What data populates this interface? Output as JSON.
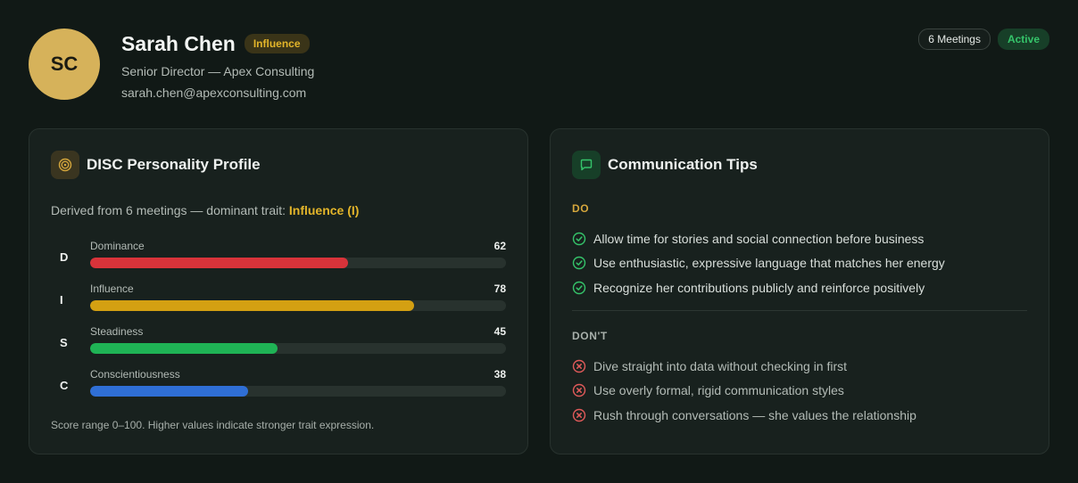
{
  "profile": {
    "initials": "SC",
    "name": "Sarah Chen",
    "trait_badge": "Influence",
    "title": "Senior Director — Apex Consulting",
    "email": "sarah.chen@apexconsulting.com",
    "meetings_badge": "6 Meetings",
    "status": "Active"
  },
  "disc": {
    "title": "DISC Personality Profile",
    "derived_prefix": "Derived from 6 meetings — dominant trait: ",
    "dominant_trait": "Influence (I)",
    "traits": [
      {
        "letter": "D",
        "label": "Dominance",
        "value": 62,
        "color": "#d8333a"
      },
      {
        "letter": "I",
        "label": "Influence",
        "value": 78,
        "color": "#d4a012"
      },
      {
        "letter": "S",
        "label": "Steadiness",
        "value": 45,
        "color": "#1fb355"
      },
      {
        "letter": "C",
        "label": "Conscientiousness",
        "value": 38,
        "color": "#2f6fd6"
      }
    ],
    "note": "Score range 0–100. Higher values indicate stronger trait expression."
  },
  "tips": {
    "title": "Communication Tips",
    "do_label": "DO",
    "do_items": [
      "Allow time for stories and social connection before business",
      "Use enthusiastic, expressive language that matches her energy",
      "Recognize her contributions publicly and reinforce positively"
    ],
    "dont_label": "DON'T",
    "dont_items": [
      "Dive straight into data without checking in first",
      "Use overly formal, rigid communication styles",
      "Rush through conversations — she values the relationship"
    ]
  }
}
